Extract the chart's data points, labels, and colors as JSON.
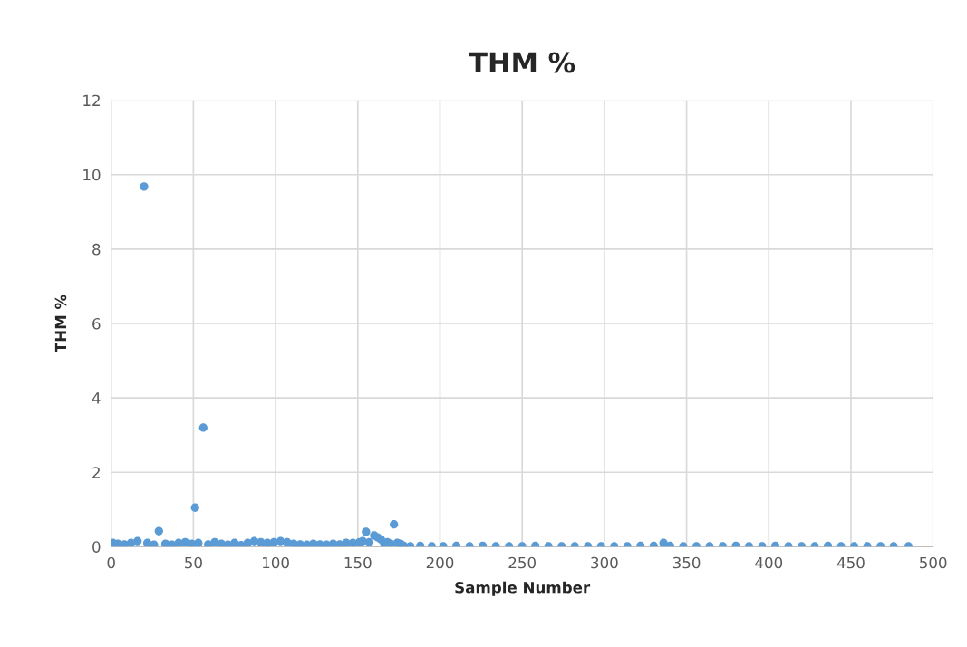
{
  "chart_data": {
    "type": "scatter",
    "title": "THM %",
    "xlabel": "Sample Number",
    "ylabel": "THM %",
    "x": [
      1,
      4,
      8,
      12,
      16,
      20,
      22,
      26,
      29,
      33,
      37,
      41,
      45,
      49,
      51,
      53,
      56,
      59,
      63,
      67,
      71,
      75,
      79,
      83,
      87,
      91,
      95,
      99,
      103,
      107,
      111,
      115,
      119,
      123,
      127,
      131,
      135,
      139,
      143,
      147,
      151,
      153,
      155,
      157,
      160,
      162,
      164,
      166,
      168,
      170,
      172,
      174,
      176,
      178,
      182,
      188,
      195,
      202,
      210,
      218,
      226,
      234,
      242,
      250,
      258,
      266,
      274,
      282,
      290,
      298,
      306,
      314,
      322,
      330,
      336,
      340,
      348,
      356,
      364,
      372,
      380,
      388,
      396,
      404,
      412,
      420,
      428,
      436,
      444,
      452,
      460,
      468,
      476,
      485
    ],
    "series": [
      {
        "color": "#5b9bd5",
        "values": [
          0.1,
          0.08,
          0.06,
          0.1,
          0.15,
          9.68,
          0.1,
          0.05,
          0.42,
          0.08,
          0.05,
          0.1,
          0.12,
          0.08,
          1.05,
          0.1,
          3.2,
          0.06,
          0.12,
          0.08,
          0.05,
          0.1,
          0.04,
          0.1,
          0.15,
          0.12,
          0.1,
          0.12,
          0.15,
          0.12,
          0.08,
          0.06,
          0.05,
          0.08,
          0.06,
          0.05,
          0.08,
          0.06,
          0.1,
          0.1,
          0.12,
          0.15,
          0.4,
          0.12,
          0.3,
          0.25,
          0.2,
          0.1,
          0.12,
          0.08,
          0.6,
          0.1,
          0.08,
          0.02,
          0.01,
          0.02,
          0.01,
          0.01,
          0.02,
          0.01,
          0.02,
          0.01,
          0.01,
          0.01,
          0.02,
          0.01,
          0.01,
          0.01,
          0.01,
          0.01,
          0.01,
          0.01,
          0.02,
          0.02,
          0.1,
          0.02,
          0.01,
          0.01,
          0.01,
          0.01,
          0.02,
          0.01,
          0.01,
          0.02,
          0.01,
          0.01,
          0.01,
          0.02,
          0.01,
          0.01,
          0.01,
          0.01,
          0.01,
          0.01
        ]
      }
    ],
    "xlim": [
      0,
      500
    ],
    "xticks": [
      0,
      50,
      100,
      150,
      200,
      250,
      300,
      350,
      400,
      450,
      500
    ],
    "ylim": [
      0,
      12
    ],
    "yticks": [
      0,
      2,
      4,
      6,
      8,
      10,
      12
    ],
    "grid": true,
    "marker": "circle"
  }
}
